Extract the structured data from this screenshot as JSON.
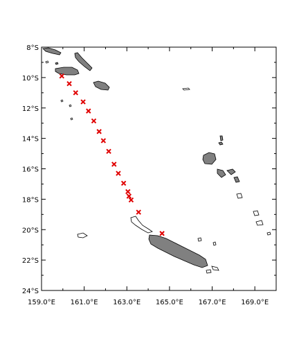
{
  "map": {
    "projection": "cylindrical-equidistant",
    "lon_range": [
      159,
      170
    ],
    "lat_range": [
      -24,
      -8
    ],
    "background": "#ffffff",
    "land_color": "#808080",
    "marker_color": "#e00000",
    "marker_symbol": "x-mark-icon",
    "x_ticks": [
      {
        "lon": 159,
        "label": "159.0°E"
      },
      {
        "lon": 161,
        "label": "161.0°E"
      },
      {
        "lon": 163,
        "label": "163.0°E"
      },
      {
        "lon": 165,
        "label": "165.0°E"
      },
      {
        "lon": 167,
        "label": "167.0°E"
      },
      {
        "lon": 169,
        "label": "169.0°E"
      }
    ],
    "y_ticks": [
      {
        "lat": -8,
        "label": "8°S"
      },
      {
        "lat": -10,
        "label": "10°S"
      },
      {
        "lat": -12,
        "label": "12°S"
      },
      {
        "lat": -14,
        "label": "14°S"
      },
      {
        "lat": -16,
        "label": "16°S"
      },
      {
        "lat": -18,
        "label": "18°S"
      },
      {
        "lat": -20,
        "label": "20°S"
      },
      {
        "lat": -22,
        "label": "22°S"
      },
      {
        "lat": -24,
        "label": "24°S"
      }
    ],
    "track_points": [
      {
        "lon": 159.95,
        "lat": -9.9
      },
      {
        "lon": 160.3,
        "lat": -10.4
      },
      {
        "lon": 160.6,
        "lat": -11.0
      },
      {
        "lon": 160.95,
        "lat": -11.6
      },
      {
        "lon": 161.2,
        "lat": -12.2
      },
      {
        "lon": 161.45,
        "lat": -12.85
      },
      {
        "lon": 161.7,
        "lat": -13.55
      },
      {
        "lon": 161.9,
        "lat": -14.15
      },
      {
        "lon": 162.15,
        "lat": -14.85
      },
      {
        "lon": 162.4,
        "lat": -15.7
      },
      {
        "lon": 162.6,
        "lat": -16.3
      },
      {
        "lon": 162.85,
        "lat": -16.95
      },
      {
        "lon": 163.05,
        "lat": -17.5
      },
      {
        "lon": 163.1,
        "lat": -17.8
      },
      {
        "lon": 163.2,
        "lat": -18.05
      },
      {
        "lon": 163.55,
        "lat": -18.85
      },
      {
        "lon": 164.65,
        "lat": -20.25
      }
    ]
  }
}
